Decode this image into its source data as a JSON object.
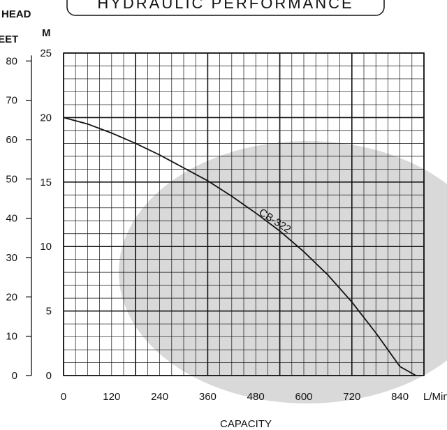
{
  "header": {
    "title": "HYDRAULIC PERFORMANCE"
  },
  "colors": {
    "background": "#ffffff",
    "watermark": "#d9d9d9",
    "grid": "#111111",
    "curve": "#111111"
  },
  "chart_data": {
    "type": "line",
    "title": "HYDRAULIC PERFORMANCE",
    "head_label": "HEAD",
    "ylabel": "M",
    "ylabel2": "FEET",
    "xlabel": "CAPACITY",
    "x_unit": "L/Min",
    "xlim": [
      0,
      900
    ],
    "ylim": [
      0,
      25
    ],
    "x_ticks": [
      0,
      120,
      240,
      360,
      480,
      600,
      720,
      840
    ],
    "y_ticks": [
      0,
      5,
      10,
      15,
      20,
      25
    ],
    "y2_ticks": [
      0,
      10,
      20,
      30,
      40,
      50,
      60,
      70,
      80
    ],
    "grid": true,
    "series": [
      {
        "name": "CB-322",
        "x": [
          0,
          60,
          120,
          180,
          240,
          300,
          360,
          420,
          480,
          540,
          600,
          660,
          720,
          780,
          840,
          880
        ],
        "y": [
          20,
          19.5,
          18.8,
          18.0,
          17.1,
          16.1,
          15.1,
          13.9,
          12.6,
          11.2,
          9.6,
          7.8,
          5.7,
          3.3,
          0.7,
          0
        ]
      }
    ]
  }
}
